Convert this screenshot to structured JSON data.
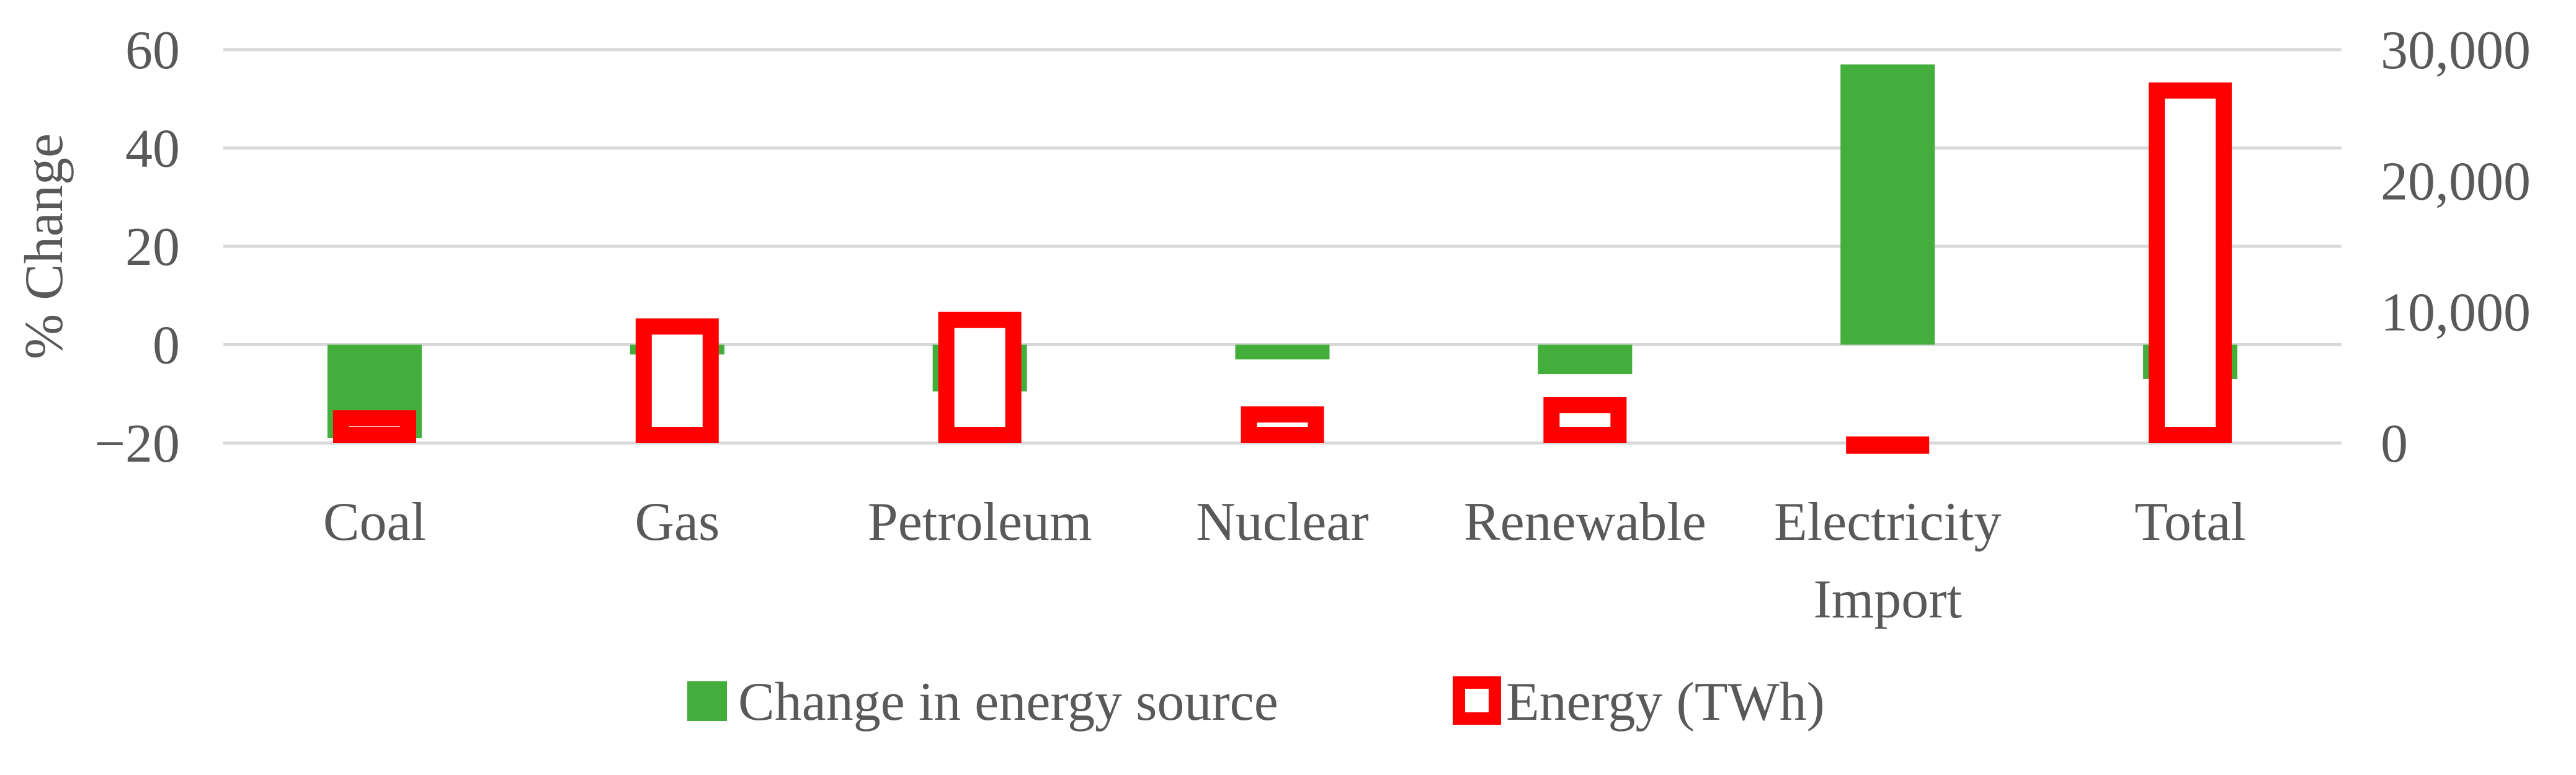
{
  "chart_data": {
    "type": "bar",
    "categories": [
      "Coal",
      "Gas",
      "Petroleum",
      "Nuclear",
      "Renewable",
      "Electricity\nImport",
      "Total"
    ],
    "y_left": {
      "label": "% Change",
      "ylim": [
        -20,
        60
      ],
      "ticks": [
        -20,
        0,
        20,
        40,
        60
      ],
      "tick_labels": [
        "−20",
        "0",
        "20",
        "40",
        "60"
      ]
    },
    "y_right": {
      "ylim": [
        0,
        30000
      ],
      "ticks": [
        0,
        10000,
        20000,
        30000
      ],
      "tick_labels": [
        "0",
        "10,000",
        "20,000",
        "30,000"
      ]
    },
    "grid": true,
    "legend_position": "bottom",
    "series": [
      {
        "name": "Change in energy source",
        "kind": "filled-bar",
        "axis": "left",
        "color": "#43ae3c",
        "values": [
          -19,
          -2,
          -9.5,
          -3,
          -6,
          57,
          -7
        ]
      },
      {
        "name": "Energy (TWh)",
        "kind": "outline-bar",
        "axis": "right",
        "color": "#ff0000",
        "values": [
          2500,
          9500,
          10000,
          2800,
          3500,
          500,
          27500
        ]
      }
    ]
  }
}
